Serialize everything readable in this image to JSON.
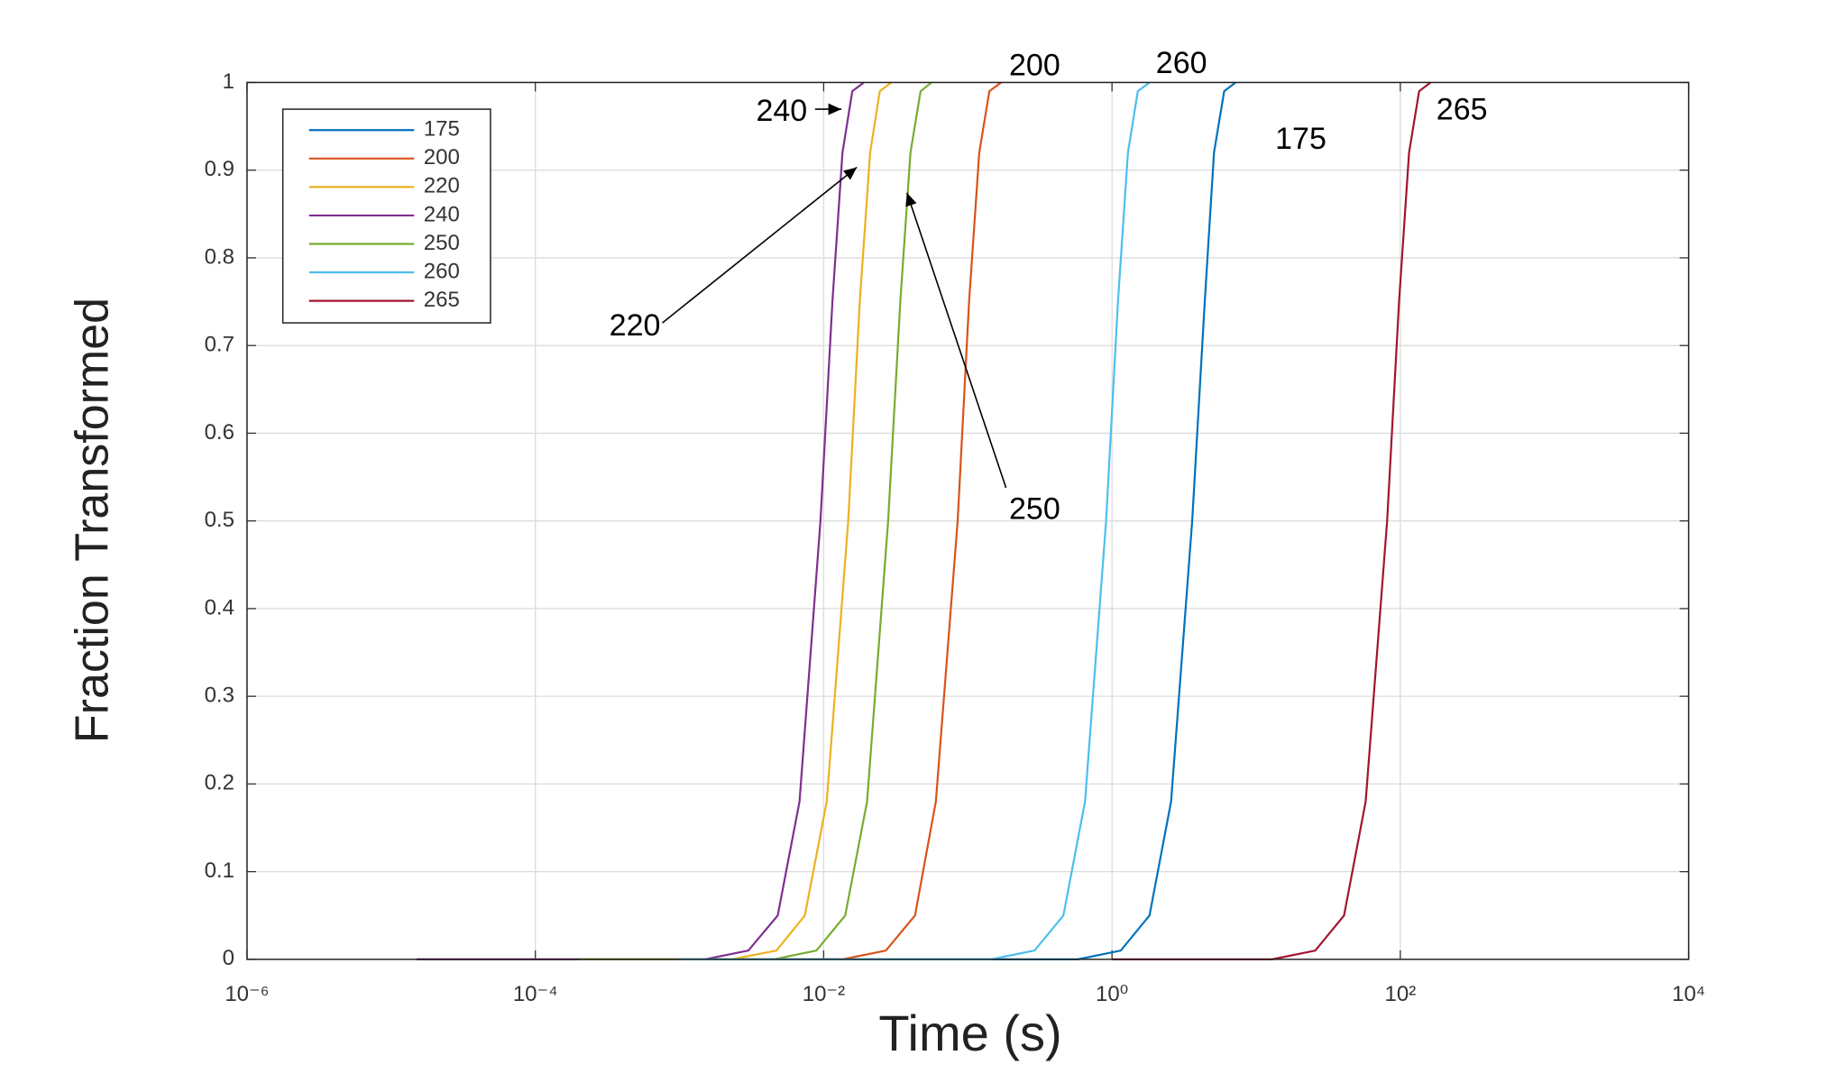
{
  "chart_data": {
    "type": "line",
    "xlabel": "Time (s)",
    "ylabel": "Fraction Transformed",
    "xscale": "log",
    "grid": true,
    "legend": "upper-left",
    "xlim": [
      1e-06,
      10000
    ],
    "xticks": [
      {
        "value": 1e-06,
        "label": "10⁻⁶"
      },
      {
        "value": 0.0001,
        "label": "10⁻⁴"
      },
      {
        "value": 0.01,
        "label": "10⁻²"
      },
      {
        "value": 1,
        "label": "10⁰"
      },
      {
        "value": 100,
        "label": "10²"
      },
      {
        "value": 10000,
        "label": "10⁴"
      }
    ],
    "ylim": [
      0,
      1
    ],
    "yticks": [
      0,
      0.1,
      0.2,
      0.3,
      0.4,
      0.5,
      0.6,
      0.7,
      0.8,
      0.9,
      1
    ],
    "series": [
      {
        "name": "175",
        "color": "#0072BD",
        "x": [
          0.001,
          0.58,
          1.15,
          1.82,
          2.57,
          3.6,
          4.4,
          5.1,
          6.0,
          7.2
        ],
        "values": [
          0,
          0,
          0.01,
          0.05,
          0.18,
          0.5,
          0.75,
          0.92,
          0.99,
          1
        ]
      },
      {
        "name": "200",
        "color": "#D95319",
        "x": [
          0.001,
          0.0135,
          0.027,
          0.043,
          0.06,
          0.085,
          0.102,
          0.12,
          0.141,
          0.17
        ],
        "values": [
          0,
          0,
          0.01,
          0.05,
          0.18,
          0.5,
          0.75,
          0.92,
          0.99,
          1
        ]
      },
      {
        "name": "220",
        "color": "#EDB120",
        "x": [
          1.5e-05,
          0.0023,
          0.0047,
          0.0074,
          0.0105,
          0.0148,
          0.0178,
          0.021,
          0.0245,
          0.0295
        ],
        "values": [
          0,
          0,
          0.01,
          0.05,
          0.18,
          0.5,
          0.75,
          0.92,
          0.99,
          1
        ]
      },
      {
        "name": "240",
        "color": "#7E2F8E",
        "x": [
          1.5e-05,
          0.0015,
          0.003,
          0.0048,
          0.0068,
          0.0095,
          0.0115,
          0.0135,
          0.0158,
          0.019
        ],
        "values": [
          0,
          0,
          0.01,
          0.05,
          0.18,
          0.5,
          0.75,
          0.92,
          0.99,
          1
        ]
      },
      {
        "name": "250",
        "color": "#77AC30",
        "x": [
          0.0002,
          0.0045,
          0.0089,
          0.0141,
          0.02,
          0.028,
          0.034,
          0.04,
          0.047,
          0.056
        ],
        "values": [
          0,
          0,
          0.01,
          0.05,
          0.18,
          0.5,
          0.75,
          0.92,
          0.99,
          1
        ]
      },
      {
        "name": "260",
        "color": "#4DBEEE",
        "x": [
          0.001,
          0.145,
          0.29,
          0.46,
          0.65,
          0.91,
          1.1,
          1.29,
          1.51,
          1.82
        ],
        "values": [
          0,
          0,
          0.01,
          0.05,
          0.18,
          0.5,
          0.75,
          0.92,
          0.99,
          1
        ]
      },
      {
        "name": "265",
        "color": "#A2142F",
        "x": [
          1,
          12.9,
          25.7,
          40.7,
          57.5,
          81,
          98,
          115,
          135,
          162
        ],
        "values": [
          0,
          0,
          0.01,
          0.05,
          0.18,
          0.5,
          0.75,
          0.92,
          0.99,
          1
        ]
      }
    ],
    "annotations": [
      {
        "text": "240"
      },
      {
        "text": "220"
      },
      {
        "text": "250"
      },
      {
        "text": "200"
      },
      {
        "text": "260"
      },
      {
        "text": "175"
      },
      {
        "text": "265"
      }
    ]
  }
}
